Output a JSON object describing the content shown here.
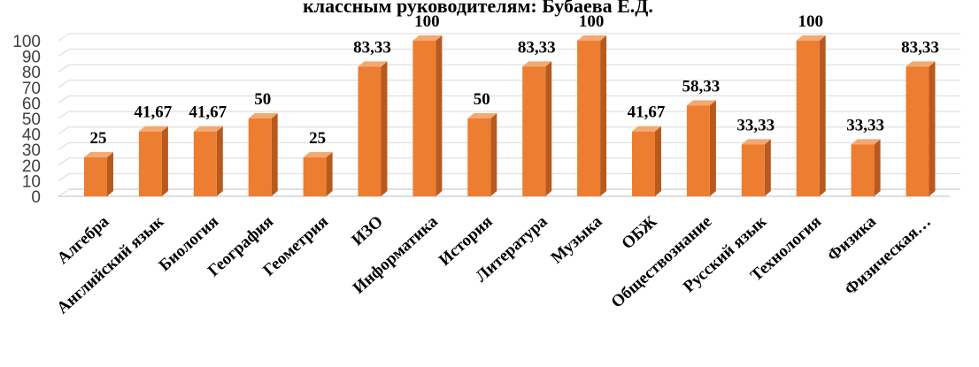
{
  "chart_data": {
    "type": "bar",
    "title": "классным руководителям: Бубаева Е.Д.",
    "categories": [
      "Алгебра",
      "Английский язык",
      "Биология",
      "География",
      "Геометрия",
      "ИЗО",
      "Информатика",
      "История",
      "Литература",
      "Музыка",
      "ОБЖ",
      "Обществознание",
      "Русский язык",
      "Технология",
      "Физика",
      "Физическая…"
    ],
    "values": [
      25,
      41.67,
      41.67,
      50,
      25,
      83.33,
      100,
      50,
      83.33,
      100,
      41.67,
      58.33,
      33.33,
      100,
      33.33,
      83.33
    ],
    "data_labels": [
      "25",
      "41,67",
      "41,67",
      "50",
      "25",
      "83,33",
      "100",
      "50",
      "83,33",
      "100",
      "41,67",
      "58,33",
      "33,33",
      "100",
      "33,33",
      "83,33"
    ],
    "ylim": [
      0,
      100
    ],
    "yticks": [
      "0",
      "10",
      "20",
      "30",
      "40",
      "50",
      "60",
      "70",
      "80",
      "90",
      "100"
    ],
    "grid": true,
    "legend": "none",
    "colors": {
      "bar_front": "#ed7d31",
      "bar_side": "#b85a1e",
      "bar_top": "#f4a872"
    }
  }
}
